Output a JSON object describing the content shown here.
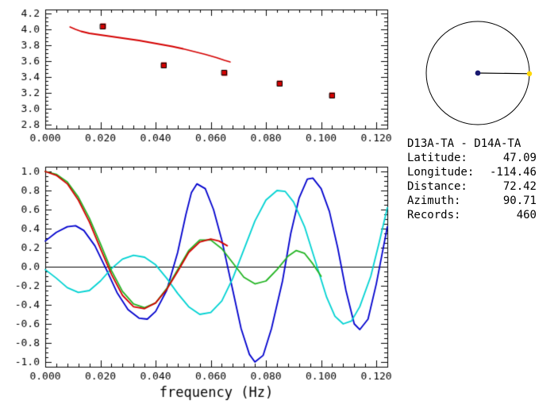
{
  "colors": {
    "axis": "#000000",
    "red": "#d40000",
    "blue": "#0000cd",
    "cyan": "#00d2d2",
    "green": "#22b422",
    "navy": "#191970",
    "yellow": "#ffd700",
    "background": "#ffffff"
  },
  "chart_data": [
    {
      "name": "dispersion-curve-plot",
      "type": "line",
      "title": "",
      "xlabel": "",
      "ylabel": "",
      "x_range": [
        0,
        0.124
      ],
      "y_range": [
        2.75,
        4.25
      ],
      "grid": false,
      "legend": "none",
      "x_ticks": [
        0,
        0.02,
        0.04,
        0.06,
        0.08,
        0.1,
        0.12
      ],
      "x_tick_labels": [
        "0.000",
        "0.020",
        "0.040",
        "0.060",
        "0.080",
        "0.100",
        "0.120"
      ],
      "y_ticks": [
        2.8,
        3.0,
        3.2,
        3.4,
        3.6,
        3.8,
        4.0,
        4.2
      ],
      "y_tick_labels": [
        "2.8",
        "3.0",
        "3.2",
        "3.4",
        "3.6",
        "3.8",
        "4.0",
        "4.2"
      ],
      "x_minor_step": 0.004,
      "y_minor_step": 0.05,
      "zero_line": false,
      "series": [
        {
          "name": "velocity-curve",
          "color": "red",
          "points": [
            [
              0.009,
              4.03
            ],
            [
              0.011,
              4.0
            ],
            [
              0.013,
              3.975
            ],
            [
              0.016,
              3.95
            ],
            [
              0.019,
              3.935
            ],
            [
              0.022,
              3.92
            ],
            [
              0.026,
              3.9
            ],
            [
              0.03,
              3.88
            ],
            [
              0.034,
              3.86
            ],
            [
              0.038,
              3.835
            ],
            [
              0.042,
              3.81
            ],
            [
              0.046,
              3.785
            ],
            [
              0.05,
              3.755
            ],
            [
              0.054,
              3.72
            ],
            [
              0.058,
              3.685
            ],
            [
              0.062,
              3.645
            ],
            [
              0.065,
              3.61
            ],
            [
              0.067,
              3.59
            ]
          ]
        }
      ],
      "markers": {
        "name": "velocity-picks",
        "shape": "square",
        "color": "red",
        "size": 7,
        "points": [
          [
            0.021,
            4.04
          ],
          [
            0.043,
            3.55
          ],
          [
            0.065,
            3.45
          ],
          [
            0.085,
            3.32
          ],
          [
            0.104,
            3.17
          ]
        ]
      }
    },
    {
      "name": "cross-correlation-plot",
      "type": "line",
      "title": "",
      "xlabel": "frequency (Hz)",
      "ylabel": "",
      "x_range": [
        0,
        0.124
      ],
      "y_range": [
        -1.05,
        1.05
      ],
      "grid": false,
      "legend": "none",
      "x_ticks": [
        0,
        0.02,
        0.04,
        0.06,
        0.08,
        0.1,
        0.12
      ],
      "x_tick_labels": [
        "0.000",
        "0.020",
        "0.040",
        "0.060",
        "0.080",
        "0.100",
        "0.120"
      ],
      "y_ticks": [
        -1.0,
        -0.8,
        -0.6,
        -0.4,
        -0.2,
        0.0,
        0.2,
        0.4,
        0.6,
        0.8,
        1.0
      ],
      "y_tick_labels": [
        "-1.0",
        "-0.8",
        "-0.6",
        "-0.4",
        "-0.2",
        "0.0",
        "0.2",
        "0.4",
        "0.6",
        "0.8",
        "1.0"
      ],
      "x_minor_step": 0.004,
      "y_minor_step": 0.05,
      "zero_line": true,
      "series": [
        {
          "name": "trace-blue",
          "color": "blue",
          "points": [
            [
              0,
              0.27
            ],
            [
              0.004,
              0.36
            ],
            [
              0.008,
              0.42
            ],
            [
              0.011,
              0.43
            ],
            [
              0.014,
              0.38
            ],
            [
              0.018,
              0.22
            ],
            [
              0.022,
              -0.02
            ],
            [
              0.026,
              -0.27
            ],
            [
              0.03,
              -0.45
            ],
            [
              0.034,
              -0.54
            ],
            [
              0.037,
              -0.55
            ],
            [
              0.04,
              -0.47
            ],
            [
              0.044,
              -0.25
            ],
            [
              0.048,
              0.15
            ],
            [
              0.051,
              0.55
            ],
            [
              0.053,
              0.78
            ],
            [
              0.055,
              0.87
            ],
            [
              0.058,
              0.82
            ],
            [
              0.061,
              0.6
            ],
            [
              0.064,
              0.28
            ],
            [
              0.068,
              -0.25
            ],
            [
              0.071,
              -0.65
            ],
            [
              0.074,
              -0.92
            ],
            [
              0.076,
              -1.0
            ],
            [
              0.079,
              -0.93
            ],
            [
              0.082,
              -0.65
            ],
            [
              0.086,
              -0.15
            ],
            [
              0.089,
              0.35
            ],
            [
              0.092,
              0.72
            ],
            [
              0.095,
              0.92
            ],
            [
              0.097,
              0.93
            ],
            [
              0.1,
              0.82
            ],
            [
              0.103,
              0.58
            ],
            [
              0.106,
              0.2
            ],
            [
              0.109,
              -0.25
            ],
            [
              0.112,
              -0.6
            ],
            [
              0.114,
              -0.66
            ],
            [
              0.117,
              -0.55
            ],
            [
              0.12,
              -0.18
            ],
            [
              0.124,
              0.42
            ]
          ]
        },
        {
          "name": "trace-cyan",
          "color": "cyan",
          "points": [
            [
              0,
              -0.03
            ],
            [
              0.004,
              -0.12
            ],
            [
              0.008,
              -0.22
            ],
            [
              0.012,
              -0.27
            ],
            [
              0.016,
              -0.25
            ],
            [
              0.02,
              -0.15
            ],
            [
              0.024,
              -0.02
            ],
            [
              0.028,
              0.08
            ],
            [
              0.032,
              0.12
            ],
            [
              0.036,
              0.1
            ],
            [
              0.04,
              0.02
            ],
            [
              0.044,
              -0.12
            ],
            [
              0.048,
              -0.28
            ],
            [
              0.052,
              -0.42
            ],
            [
              0.056,
              -0.5
            ],
            [
              0.06,
              -0.48
            ],
            [
              0.064,
              -0.36
            ],
            [
              0.068,
              -0.12
            ],
            [
              0.072,
              0.18
            ],
            [
              0.076,
              0.48
            ],
            [
              0.08,
              0.7
            ],
            [
              0.084,
              0.8
            ],
            [
              0.087,
              0.79
            ],
            [
              0.09,
              0.68
            ],
            [
              0.094,
              0.42
            ],
            [
              0.098,
              0.05
            ],
            [
              0.102,
              -0.32
            ],
            [
              0.105,
              -0.52
            ],
            [
              0.108,
              -0.6
            ],
            [
              0.111,
              -0.57
            ],
            [
              0.114,
              -0.42
            ],
            [
              0.118,
              -0.1
            ],
            [
              0.121,
              0.25
            ],
            [
              0.124,
              0.62
            ]
          ]
        },
        {
          "name": "trace-green",
          "color": "green",
          "points": [
            [
              0,
              1.0
            ],
            [
              0.004,
              0.97
            ],
            [
              0.008,
              0.89
            ],
            [
              0.012,
              0.73
            ],
            [
              0.016,
              0.51
            ],
            [
              0.02,
              0.24
            ],
            [
              0.024,
              -0.04
            ],
            [
              0.028,
              -0.26
            ],
            [
              0.032,
              -0.39
            ],
            [
              0.036,
              -0.43
            ],
            [
              0.04,
              -0.38
            ],
            [
              0.044,
              -0.23
            ],
            [
              0.048,
              -0.03
            ],
            [
              0.052,
              0.17
            ],
            [
              0.056,
              0.28
            ],
            [
              0.06,
              0.28
            ],
            [
              0.064,
              0.19
            ],
            [
              0.068,
              0.04
            ],
            [
              0.072,
              -0.11
            ],
            [
              0.076,
              -0.18
            ],
            [
              0.08,
              -0.15
            ],
            [
              0.084,
              -0.03
            ],
            [
              0.088,
              0.11
            ],
            [
              0.091,
              0.17
            ],
            [
              0.094,
              0.14
            ],
            [
              0.097,
              0.03
            ],
            [
              0.1,
              -0.1
            ]
          ]
        },
        {
          "name": "trace-red",
          "color": "red",
          "points": [
            [
              0,
              1.0
            ],
            [
              0.004,
              0.96
            ],
            [
              0.008,
              0.87
            ],
            [
              0.012,
              0.7
            ],
            [
              0.016,
              0.47
            ],
            [
              0.02,
              0.19
            ],
            [
              0.024,
              -0.08
            ],
            [
              0.028,
              -0.3
            ],
            [
              0.032,
              -0.42
            ],
            [
              0.036,
              -0.44
            ],
            [
              0.04,
              -0.38
            ],
            [
              0.044,
              -0.24
            ],
            [
              0.048,
              -0.05
            ],
            [
              0.052,
              0.15
            ],
            [
              0.056,
              0.26
            ],
            [
              0.06,
              0.29
            ],
            [
              0.063,
              0.27
            ],
            [
              0.066,
              0.22
            ]
          ]
        }
      ]
    }
  ],
  "compass": {
    "azimuth_deg": 90.71
  },
  "info": {
    "title": "D13A-TA - D14A-TA",
    "rows": [
      {
        "label": "Latitude:",
        "value": "47.09"
      },
      {
        "label": "Longitude:",
        "value": "-114.46"
      },
      {
        "label": "Distance:",
        "value": "72.42"
      },
      {
        "label": "Azimuth:",
        "value": "90.71"
      },
      {
        "label": "Records:",
        "value": "460"
      }
    ]
  }
}
